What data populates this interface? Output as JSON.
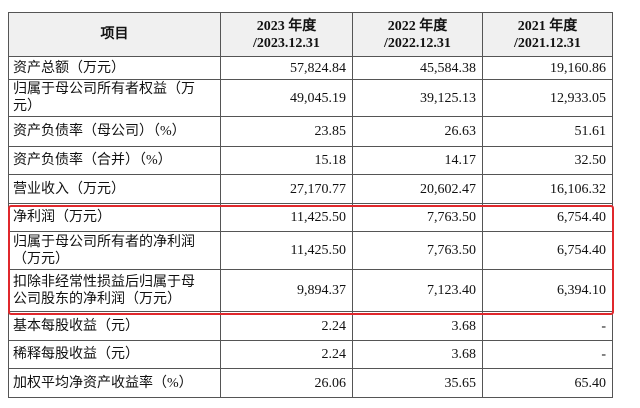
{
  "table": {
    "header": [
      [
        "项目"
      ],
      [
        "2023 年度",
        "/2023.12.31"
      ],
      [
        "2022 年度",
        "/2022.12.31"
      ],
      [
        "2021 年度",
        "/2021.12.31"
      ]
    ],
    "rows": [
      {
        "label": [
          "资产总额（万元）"
        ],
        "cells": [
          "57,824.84",
          "45,584.38",
          "19,160.86"
        ]
      },
      {
        "label": [
          "归属于母公司所有者权益（万",
          "元）"
        ],
        "cells": [
          "49,045.19",
          "39,125.13",
          "12,933.05"
        ]
      },
      {
        "label": [
          "资产负债率（母公司）（%）"
        ],
        "cells": [
          "23.85",
          "26.63",
          "51.61"
        ]
      },
      {
        "label": [
          "资产负债率（合并）（%）"
        ],
        "cells": [
          "15.18",
          "14.17",
          "32.50"
        ]
      },
      {
        "label": [
          "营业收入（万元）"
        ],
        "cells": [
          "27,170.77",
          "20,602.47",
          "16,106.32"
        ]
      },
      {
        "label": [
          "净利润（万元）"
        ],
        "cells": [
          "11,425.50",
          "7,763.50",
          "6,754.40"
        ]
      },
      {
        "label": [
          "归属于母公司所有者的净利润",
          "（万元）"
        ],
        "cells": [
          "11,425.50",
          "7,763.50",
          "6,754.40"
        ]
      },
      {
        "label": [
          "扣除非经常性损益后归属于母",
          "公司股东的净利润（万元）"
        ],
        "cells": [
          "9,894.37",
          "7,123.40",
          "6,394.10"
        ]
      },
      {
        "label": [
          "基本每股收益（元）"
        ],
        "cells": [
          "2.24",
          "3.68",
          "-"
        ]
      },
      {
        "label": [
          "稀释每股收益（元）"
        ],
        "cells": [
          "2.24",
          "3.68",
          "-"
        ]
      },
      {
        "label": [
          "加权平均净资产收益率（%）"
        ],
        "cells": [
          "26.06",
          "35.65",
          "65.40"
        ]
      }
    ]
  }
}
